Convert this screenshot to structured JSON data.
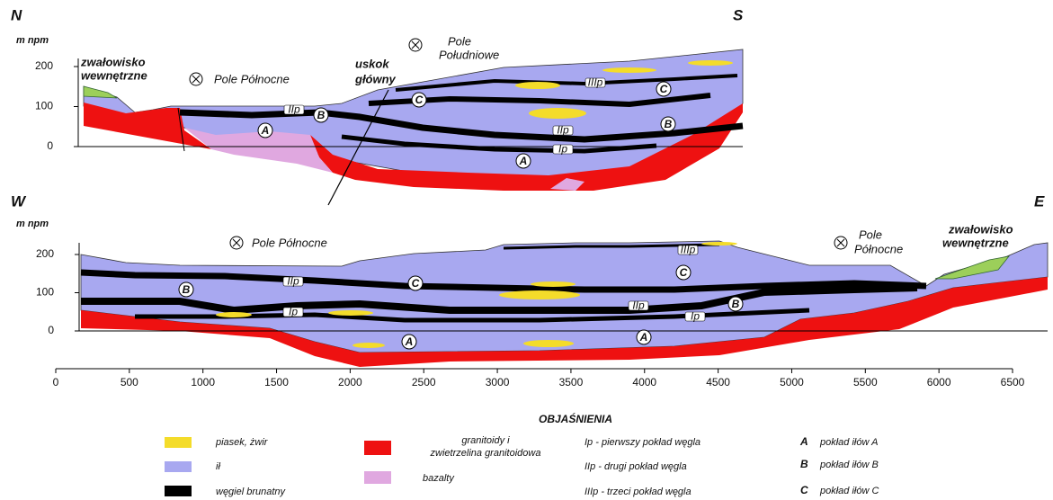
{
  "top_section": {
    "direction_left": "N",
    "direction_right": "S",
    "elevation_unit": "m npm",
    "elevation_ticks": [
      200,
      100,
      0
    ],
    "dump_label": [
      "zwałowisko",
      "wewnętrzne"
    ],
    "field_north": "Pole Północne",
    "fault_label": [
      "uskok",
      "główny"
    ],
    "field_south": [
      "Pole",
      "Południowe"
    ],
    "seam_labels": [
      "C",
      "C",
      "B",
      "B",
      "A",
      "A"
    ],
    "coal_labels": [
      "IIp",
      "IIIp",
      "IIp",
      "Ip"
    ]
  },
  "bottom_section": {
    "direction_left": "W",
    "direction_right": "E",
    "elevation_unit": "m npm",
    "elevation_ticks": [
      200,
      100,
      0
    ],
    "field_west": "Pole Północne",
    "field_east": [
      "Pole",
      "Północne"
    ],
    "dump_label": [
      "zwałowisko",
      "wewnętrzne"
    ],
    "seam_labels": [
      "B",
      "C",
      "C",
      "B",
      "A",
      "A"
    ],
    "coal_labels": [
      "IIIp",
      "IIp",
      "Ip",
      "IIp",
      "Ip"
    ]
  },
  "distance_ticks": [
    0,
    500,
    1000,
    1500,
    2000,
    2500,
    3000,
    3500,
    4000,
    4500,
    5000,
    5500,
    6000,
    6500
  ],
  "legend": {
    "title": "OBJAŚNIENIA",
    "lithology": [
      "piasek, żwir",
      "ił",
      "węgiel brunatny"
    ],
    "granite": [
      "granitoidy i",
      "zwietrzelina granitoidowa"
    ],
    "basalt": "bazalty",
    "coal_seams": [
      "Ip - pierwszy pokład węgla",
      "IIp - drugi pokład węgla",
      "IIIp - trzeci pokład węgla"
    ],
    "clay_seams": [
      {
        "letter": "A",
        "text": "pokład iłów A"
      },
      {
        "letter": "B",
        "text": "pokład iłów B"
      },
      {
        "letter": "C",
        "text": "pokład iłów C"
      }
    ]
  }
}
